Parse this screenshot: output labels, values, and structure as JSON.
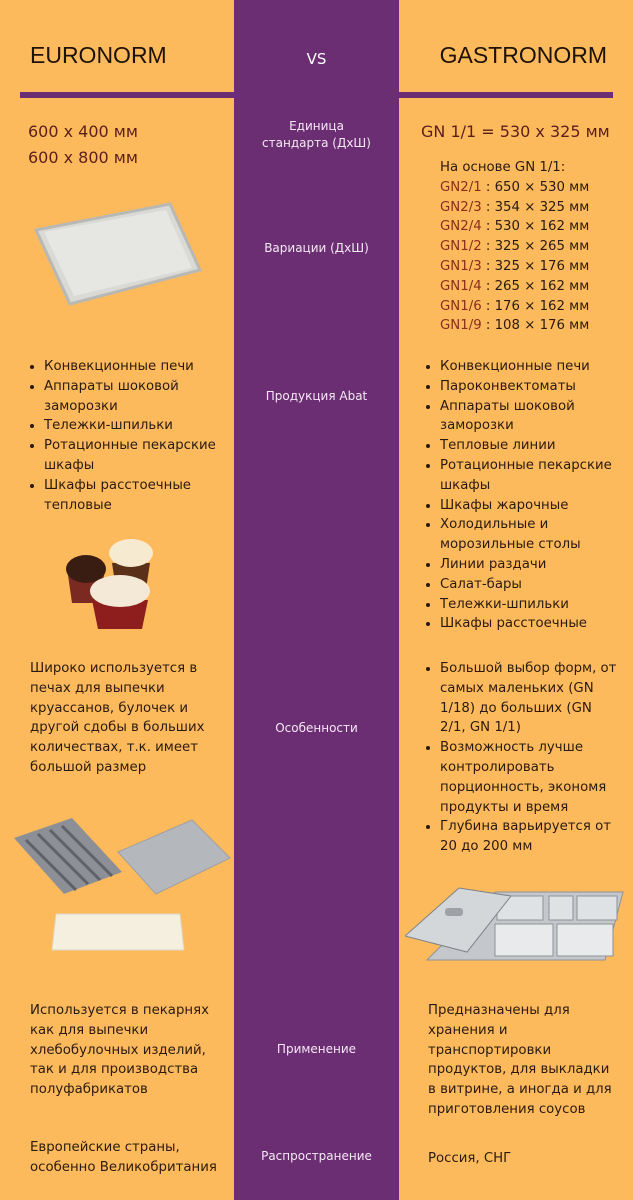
{
  "header": {
    "left": "EURONORM",
    "vs": "VS",
    "right": "GASTRONORM"
  },
  "labels": {
    "unit": "Единица стандарта (ДхШ)",
    "variations": "Вариации (ДхШ)",
    "products": "Продукция Abat",
    "features": "Особенности",
    "usage": "Применение",
    "spread": "Распространение"
  },
  "euro": {
    "dims": [
      "600 х 400 мм",
      "600 х 800 мм"
    ],
    "products": [
      "Конвекционные печи",
      "Аппараты шоковой заморозки",
      "Тележки-шпильки",
      "Ротационные пекарские шкафы",
      "Шкафы расстоечные тепловые"
    ],
    "features": "Широко используется в печах для выпечки круассанов, булочек и другой сдобы в больших количествах, т.к. имеет большой размер",
    "usage": "Используется в пекарнях как для выпечки хлебобулочных изделий, так и для производства полуфабрикатов",
    "spread": "Европейские страны, особенно Великобритания"
  },
  "gastro": {
    "unit": "GN 1/1 = 530 х 325 мм",
    "variations_intro": "На основе GN 1/1:",
    "variations": [
      {
        "code": "GN2/1",
        "size": " : 650 × 530 мм"
      },
      {
        "code": "GN2/3",
        "size": " : 354 × 325 мм"
      },
      {
        "code": "GN2/4",
        "size": " : 530 × 162 мм"
      },
      {
        "code": "GN1/2",
        "size": " : 325 × 265 мм"
      },
      {
        "code": "GN1/3",
        "size": " : 325 × 176 мм"
      },
      {
        "code": "GN1/4",
        "size": " : 265 × 162 мм"
      },
      {
        "code": "GN1/6",
        "size": " : 176 × 162 мм"
      },
      {
        "code": "GN1/9",
        "size": " : 108 × 176 мм"
      }
    ],
    "products": [
      "Конвекционные печи",
      "Пароконвектоматы",
      "Аппараты шоковой заморозки",
      "Тепловые линии",
      "Ротационные пекарские шкафы",
      "Шкафы жарочные",
      "Холодильные и морозильные столы",
      "Линии раздачи",
      "Салат-бары",
      "Тележки-шпильки",
      "Шкафы расстоечные"
    ],
    "features": [
      "Большой выбор форм, от самых маленьких (GN 1/18) до больших (GN 2/1, GN 1/1)",
      "Возможность лучше контролировать порционность, экономя продукты и время",
      "Глубина варьируется от 20 до 200 мм"
    ],
    "usage": "Предназначены для хранения и транспортировки продуктов, для выкладки в витрине, а иногда и для приготовления соусов",
    "spread": "Россия, СНГ"
  },
  "colors": {
    "background": "#FDBA5C",
    "purple": "#6C2E73",
    "accent_text": "#8a2c1e"
  }
}
